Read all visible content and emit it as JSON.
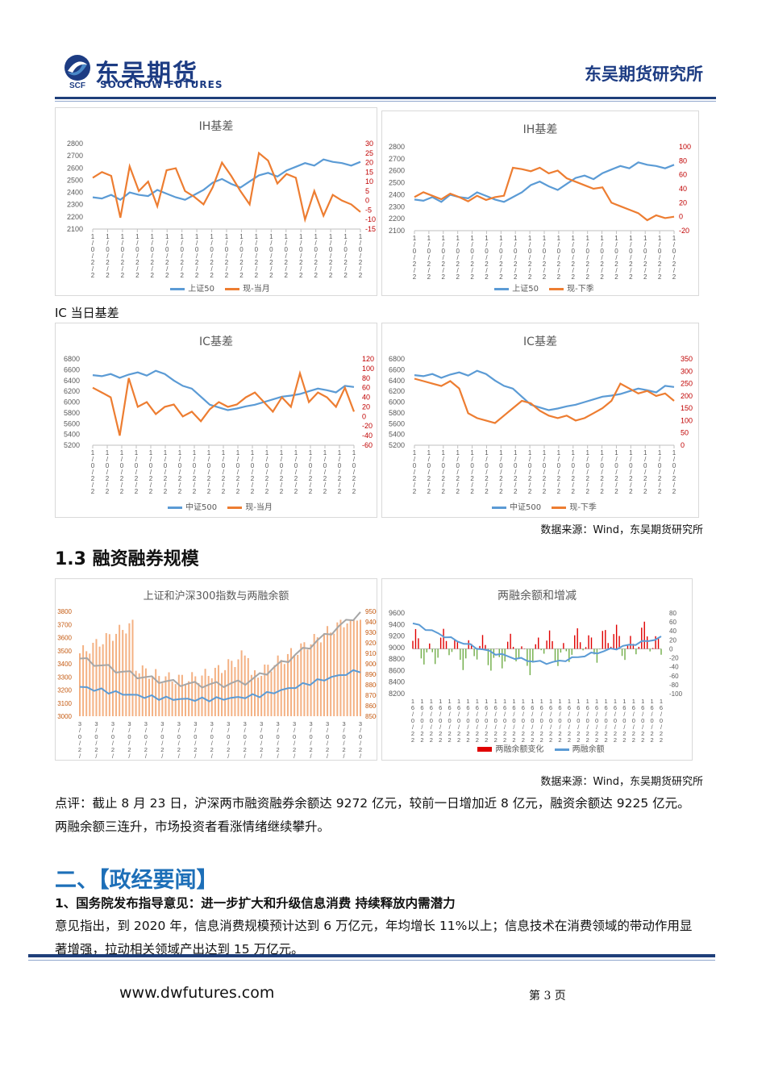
{
  "header": {
    "logo_cn": "东吴期货",
    "logo_en": "SOOCHOW FUTURES",
    "logo_mark": "SCF",
    "institute": "东吴期货研究所"
  },
  "charts": {
    "ih1": {
      "title": "IH基差",
      "legend": [
        "上证50",
        "现-当月"
      ],
      "left_ticks": [
        "2800",
        "2700",
        "2600",
        "2500",
        "2400",
        "2300",
        "2200",
        "2100"
      ],
      "right_ticks": [
        "30",
        "25",
        "20",
        "15",
        "10",
        "5",
        "0",
        "-5",
        "-10",
        "-15"
      ]
    },
    "ih2": {
      "title": "IH基差",
      "legend": [
        "上证50",
        "现-下季"
      ],
      "left_ticks": [
        "2800",
        "2700",
        "2600",
        "2500",
        "2400",
        "2300",
        "2200",
        "2100"
      ],
      "right_ticks": [
        "100",
        "80",
        "60",
        "40",
        "20",
        "0",
        "-20"
      ]
    },
    "ic1": {
      "title": "IC基差",
      "legend": [
        "中证500",
        "现-当月"
      ],
      "left_ticks": [
        "6800",
        "6600",
        "6400",
        "6200",
        "6000",
        "5800",
        "5600",
        "5400",
        "5200"
      ],
      "right_ticks": [
        "120",
        "100",
        "80",
        "60",
        "40",
        "20",
        "0",
        "-20",
        "-40",
        "-60"
      ]
    },
    "ic2": {
      "title": "IC基差",
      "legend": [
        "中证500",
        "现-下季"
      ],
      "left_ticks": [
        "6800",
        "6600",
        "6400",
        "6200",
        "6000",
        "5800",
        "5600",
        "5400",
        "5200"
      ],
      "right_ticks": [
        "350",
        "300",
        "250",
        "200",
        "150",
        "100",
        "50",
        "0"
      ]
    },
    "mg1": {
      "title": "上证和沪深300指数与两融余额",
      "left_ticks": [
        "3800",
        "3700",
        "3600",
        "3500",
        "3400",
        "3300",
        "3200",
        "3100",
        "3000"
      ],
      "right_ticks": [
        "9500",
        "9400",
        "9300",
        "9200",
        "9100",
        "9000",
        "8900",
        "8800",
        "8700",
        "8600",
        "8500"
      ]
    },
    "mg2": {
      "title": "两融余额和增减",
      "legend": [
        "两融余额变化",
        "两融余额"
      ],
      "left_ticks": [
        "9600",
        "9400",
        "9200",
        "9000",
        "8800",
        "8600",
        "8400",
        "8200"
      ],
      "right_ticks": [
        "80",
        "60",
        "40",
        "20",
        "0",
        "-20",
        "-40",
        "-60",
        "-80",
        "-100"
      ]
    }
  },
  "chart_data": [
    {
      "type": "line",
      "title": "IH基差",
      "series": [
        {
          "name": "上证50",
          "values": [
            2360,
            2350,
            2380,
            2340,
            2400,
            2380,
            2370,
            2420,
            2390,
            2360,
            2340,
            2380,
            2420,
            2480,
            2510,
            2470,
            2440,
            2490,
            2540,
            2560,
            2530,
            2580,
            2610,
            2640,
            2620,
            2670,
            2650,
            2640,
            2620,
            2650
          ]
        },
        {
          "name": "现-当月",
          "values": [
            12,
            15,
            13,
            -9,
            18,
            5,
            10,
            -3,
            16,
            17,
            5,
            2,
            -2,
            7,
            20,
            13,
            5,
            -2,
            25,
            21,
            9,
            14,
            12,
            -10,
            5,
            -8,
            3,
            0,
            -2,
            -6
          ]
        }
      ],
      "ylim": [
        2100,
        2800
      ],
      "y2lim": [
        -15,
        30
      ]
    },
    {
      "type": "line",
      "title": "IH基差",
      "series": [
        {
          "name": "上证50",
          "values": [
            2360,
            2350,
            2380,
            2340,
            2400,
            2380,
            2370,
            2420,
            2390,
            2360,
            2340,
            2380,
            2420,
            2480,
            2510,
            2470,
            2440,
            2490,
            2540,
            2560,
            2530,
            2580,
            2610,
            2640,
            2620,
            2670,
            2650,
            2640,
            2620,
            2650
          ]
        },
        {
          "name": "现-下季",
          "values": [
            28,
            35,
            30,
            25,
            33,
            28,
            22,
            30,
            24,
            28,
            30,
            70,
            68,
            65,
            70,
            62,
            66,
            55,
            50,
            45,
            40,
            42,
            20,
            15,
            10,
            5,
            -5,
            2,
            -2,
            0
          ]
        }
      ],
      "ylim": [
        2100,
        2800
      ],
      "y2lim": [
        -20,
        100
      ]
    },
    {
      "type": "line",
      "title": "IC基差",
      "series": [
        {
          "name": "中证500",
          "values": [
            6500,
            6480,
            6520,
            6450,
            6510,
            6550,
            6490,
            6580,
            6520,
            6400,
            6300,
            6250,
            6100,
            5950,
            5900,
            5850,
            5880,
            5920,
            5950,
            6000,
            6050,
            6100,
            6120,
            6150,
            6200,
            6250,
            6220,
            6180,
            6300,
            6280
          ]
        },
        {
          "name": "现-当月",
          "values": [
            60,
            50,
            40,
            -40,
            80,
            20,
            30,
            5,
            20,
            25,
            0,
            10,
            -10,
            15,
            30,
            20,
            25,
            40,
            50,
            30,
            10,
            40,
            20,
            90,
            30,
            50,
            40,
            20,
            60,
            10
          ]
        }
      ],
      "ylim": [
        5200,
        6800
      ],
      "y2lim": [
        -60,
        120
      ]
    },
    {
      "type": "line",
      "title": "IC基差",
      "series": [
        {
          "name": "中证500",
          "values": [
            6500,
            6480,
            6520,
            6450,
            6510,
            6550,
            6490,
            6580,
            6520,
            6400,
            6300,
            6250,
            6100,
            5950,
            5900,
            5850,
            5880,
            5920,
            5950,
            6000,
            6050,
            6100,
            6120,
            6150,
            6200,
            6250,
            6220,
            6180,
            6300,
            6280
          ]
        },
        {
          "name": "现-下季",
          "values": [
            270,
            260,
            250,
            240,
            260,
            230,
            130,
            110,
            100,
            90,
            120,
            150,
            180,
            170,
            140,
            120,
            110,
            120,
            100,
            110,
            130,
            150,
            180,
            250,
            230,
            210,
            220,
            200,
            210,
            180
          ]
        }
      ],
      "ylim": [
        5200,
        6800
      ],
      "y2lim": [
        0,
        350
      ]
    },
    {
      "type": "bar",
      "title": "上证和沪深300指数与两融余额",
      "ylim": [
        3000,
        3800
      ],
      "y2lim": [
        8500,
        9500
      ]
    },
    {
      "type": "bar",
      "title": "两融余额和增减",
      "series": [
        {
          "name": "两融余额变化"
        },
        {
          "name": "两融余额"
        }
      ],
      "ylim": [
        8200,
        9600
      ],
      "y2lim": [
        -100,
        80
      ]
    }
  ],
  "texts": {
    "ic_daily_label": "IC 当日基差",
    "source1": "数据来源：Wind，东吴期货研究所",
    "section_13": "1.3 融资融券规模",
    "source2": "数据来源：Wind，东吴期货研究所",
    "comment_line1": "点评：截止 8 月 23 日，沪深两市融资融券余额达 9272 亿元，较前一日增加近 8 亿元，融资余额达 9225 亿元。",
    "comment_line2": "两融余额三连升，市场投资者看涨情绪继续攀升。",
    "section_2": "二、【政经要闻】",
    "news1_title": "1、国务院发布指导意见：进一步扩大和升级信息消费 持续释放内需潜力",
    "news1_line1": "意见指出，到 2020 年，信息消费规模预计达到 6 万亿元，年均增长 11%以上；信息技术在消费领域的带动作用显",
    "news1_line2": "著增强，拉动相关领域产出达到 15 万亿元。"
  },
  "footer": {
    "website": "www.dwfutures.com",
    "page": "第 3 页"
  }
}
